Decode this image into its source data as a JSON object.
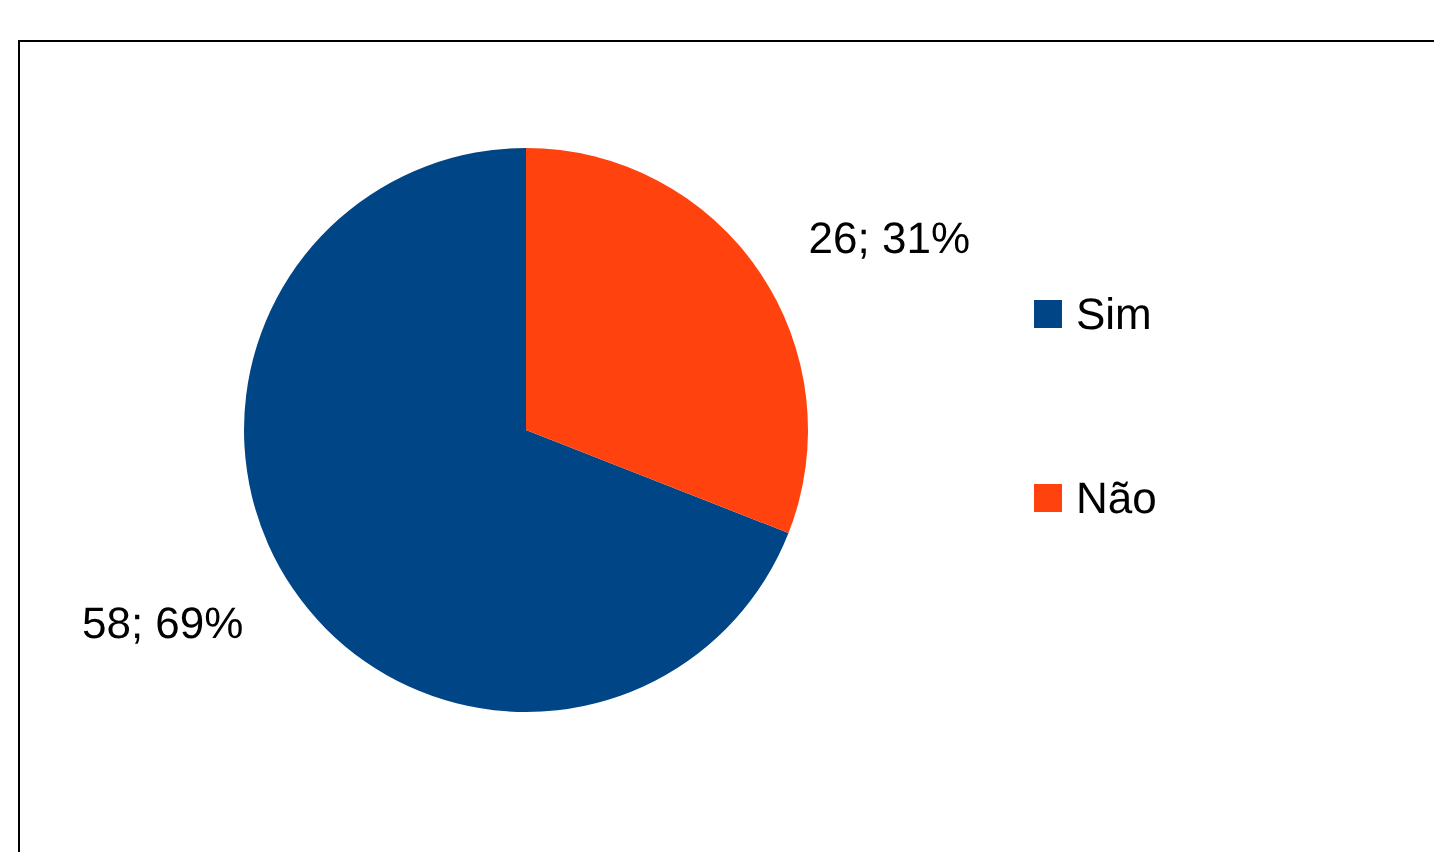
{
  "chart_data": {
    "type": "pie",
    "categories": [
      "Sim",
      "Não"
    ],
    "values": [
      58,
      26
    ],
    "colors": [
      "#004586",
      "#ff420e"
    ],
    "value_labels": [
      "58; 69%",
      "26; 31%"
    ],
    "legend": "right"
  }
}
